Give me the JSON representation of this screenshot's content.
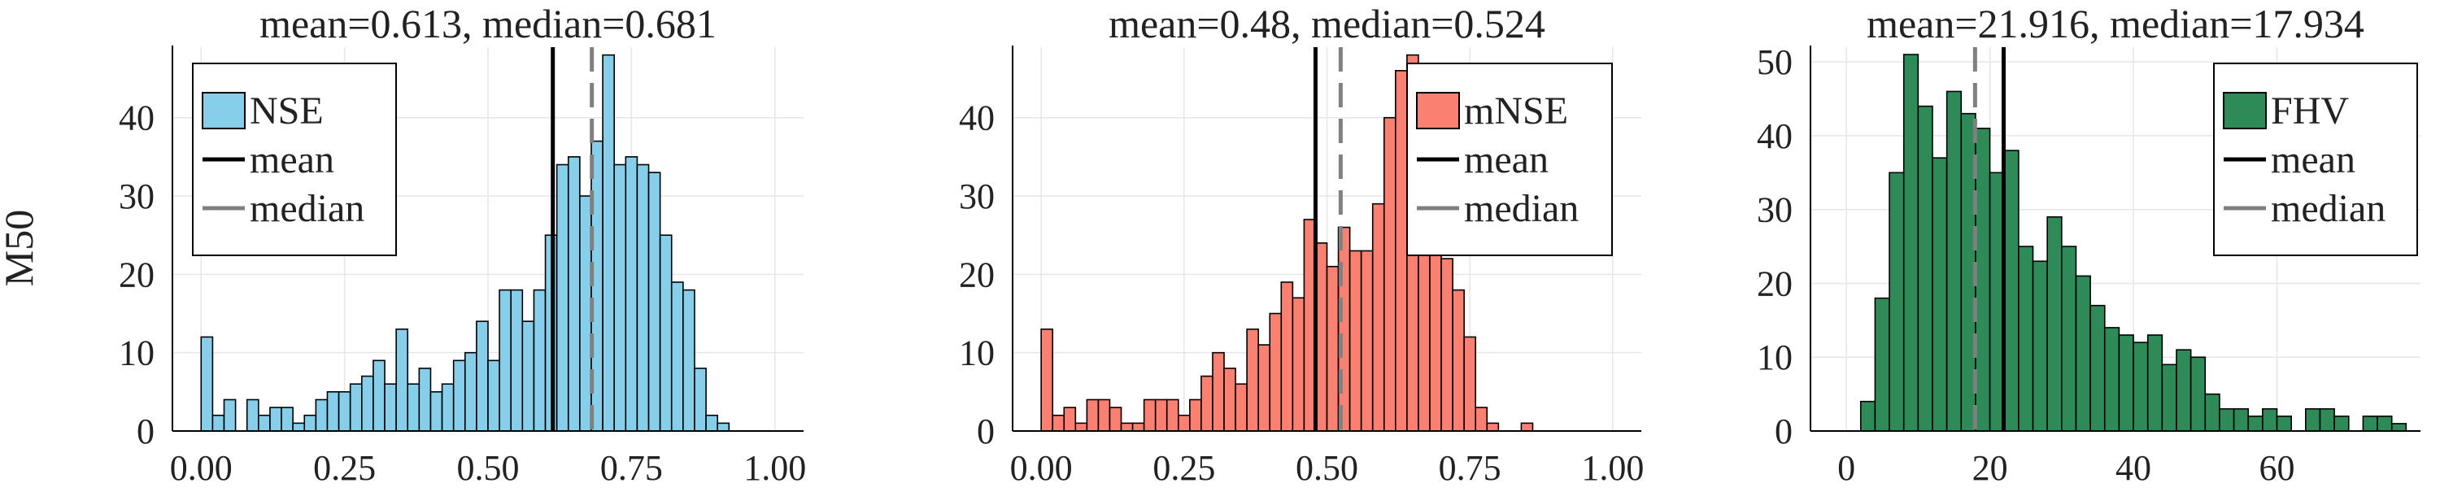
{
  "figure": {
    "ylabel": "M50"
  },
  "chart_data": [
    {
      "type": "bar",
      "title": "mean=0.613, median=0.681",
      "series_name": "NSE",
      "fill_color": "#87CEEB",
      "bin_width": 0.02,
      "bins_start": 0.0,
      "counts": [
        12,
        2,
        4,
        0,
        4,
        2,
        3,
        3,
        1,
        2,
        4,
        5,
        5,
        6,
        7,
        9,
        6,
        13,
        6,
        8,
        5,
        6,
        9,
        10,
        14,
        9,
        18,
        18,
        14,
        18,
        25,
        34,
        35,
        30,
        37,
        48,
        34,
        35,
        34,
        33,
        25,
        19,
        18,
        8,
        2,
        1
      ],
      "mean": 0.613,
      "median": 0.681,
      "xlim": [
        -0.05,
        1.05
      ],
      "ylim": [
        0,
        49
      ],
      "xticks": [
        0,
        0.25,
        0.5,
        0.75,
        1.0
      ],
      "xtick_labels": [
        "0.00",
        "0.25",
        "0.50",
        "0.75",
        "1.00"
      ],
      "yticks": [
        0,
        10,
        20,
        30,
        40
      ],
      "ytick_labels": [
        "0",
        "10",
        "20",
        "30",
        "40"
      ],
      "legend": {
        "position": "top-left",
        "items": [
          "NSE",
          "mean",
          "median"
        ]
      },
      "grid": true
    },
    {
      "type": "bar",
      "title": "mean=0.48, median=0.524",
      "series_name": "mNSE",
      "fill_color": "#FA8072",
      "bin_width": 0.02,
      "bins_start": 0.0,
      "counts": [
        13,
        2,
        3,
        1,
        4,
        4,
        3,
        1,
        1,
        4,
        4,
        4,
        2,
        4,
        7,
        10,
        8,
        6,
        13,
        11,
        15,
        19,
        17,
        27,
        24,
        21,
        26,
        23,
        23,
        29,
        40,
        46,
        48,
        43,
        32,
        22,
        18,
        12,
        3,
        1,
        0,
        0,
        1
      ],
      "mean": 0.48,
      "median": 0.524,
      "xlim": [
        -0.05,
        1.05
      ],
      "ylim": [
        0,
        49
      ],
      "xticks": [
        0,
        0.25,
        0.5,
        0.75,
        1.0
      ],
      "xtick_labels": [
        "0.00",
        "0.25",
        "0.50",
        "0.75",
        "1.00"
      ],
      "yticks": [
        0,
        10,
        20,
        30,
        40
      ],
      "ytick_labels": [
        "0",
        "10",
        "20",
        "30",
        "40"
      ],
      "legend": {
        "position": "top-right",
        "items": [
          "mNSE",
          "mean",
          "median"
        ]
      },
      "grid": true
    },
    {
      "type": "bar",
      "title": "mean=21.916, median=17.934",
      "series_name": "FHV",
      "fill_color": "#2E8B57",
      "bin_width": 2,
      "bins_start": 2,
      "counts": [
        4,
        18,
        35,
        51,
        44,
        37,
        46,
        43,
        41,
        35,
        38,
        25,
        23,
        29,
        25,
        21,
        17,
        14,
        13,
        12,
        13,
        9,
        11,
        10,
        5,
        3,
        3,
        2,
        3,
        2,
        0,
        3,
        3,
        2,
        0,
        2,
        2,
        1
      ],
      "mean": 21.916,
      "median": 17.934,
      "xlim": [
        -5,
        80
      ],
      "ylim": [
        0,
        52
      ],
      "xticks": [
        0,
        20,
        40,
        60
      ],
      "xtick_labels": [
        "0",
        "20",
        "40",
        "60"
      ],
      "yticks": [
        0,
        10,
        20,
        30,
        40,
        50
      ],
      "ytick_labels": [
        "0",
        "10",
        "20",
        "30",
        "40",
        "50"
      ],
      "legend": {
        "position": "top-right",
        "items": [
          "FHV",
          "mean",
          "median"
        ]
      },
      "grid": true
    }
  ]
}
